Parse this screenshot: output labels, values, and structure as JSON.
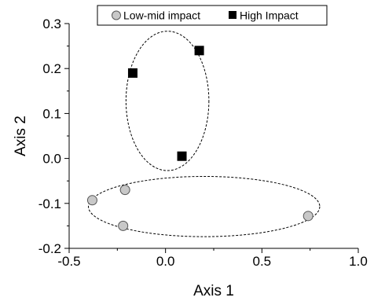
{
  "chart_data": {
    "type": "scatter",
    "xlabel": "Axis 1",
    "ylabel": "Axis 2",
    "xlim": [
      -0.5,
      1.0
    ],
    "ylim": [
      -0.2,
      0.3
    ],
    "x_ticks": [
      "-0.5",
      "0.0",
      "0.5",
      "1.0"
    ],
    "y_ticks": [
      "-0.2",
      "-0.1",
      "0.0",
      "0.1",
      "0.2",
      "0.3"
    ],
    "grid": false,
    "legend_position": "top",
    "series": [
      {
        "name": "Low-mid impact",
        "marker": "circle",
        "color": "#c8c8c8",
        "points": [
          {
            "x": -0.38,
            "y": -0.093
          },
          {
            "x": -0.21,
            "y": -0.07
          },
          {
            "x": -0.22,
            "y": -0.15
          },
          {
            "x": 0.74,
            "y": -0.128
          }
        ]
      },
      {
        "name": "High Impact",
        "marker": "square",
        "color": "#000000",
        "points": [
          {
            "x": -0.17,
            "y": 0.19
          },
          {
            "x": 0.175,
            "y": 0.24
          },
          {
            "x": 0.085,
            "y": 0.005
          }
        ]
      }
    ],
    "ellipses": [
      {
        "cx": 0.01,
        "cy": 0.128,
        "rx": 0.215,
        "ry": 0.155
      },
      {
        "cx": 0.2,
        "cy": -0.107,
        "rx": 0.6,
        "ry": 0.067
      }
    ]
  }
}
